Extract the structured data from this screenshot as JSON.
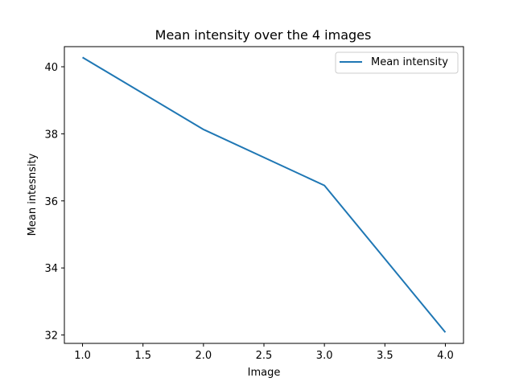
{
  "chart_data": {
    "type": "line",
    "title": "Mean intensity over the 4 images",
    "xlabel": "Image",
    "ylabel": "Mean intesnsity",
    "x": [
      1.0,
      2.0,
      3.0,
      4.0
    ],
    "series": [
      {
        "name": "Mean intensity",
        "values": [
          40.28,
          38.13,
          36.46,
          32.08
        ],
        "color": "#1f77b4"
      }
    ],
    "xlim": [
      0.85,
      4.15
    ],
    "ylim": [
      31.75,
      40.6
    ],
    "xticks": [
      1.0,
      1.5,
      2.0,
      2.5,
      3.0,
      3.5,
      4.0
    ],
    "xtick_labels": [
      "1.0",
      "1.5",
      "2.0",
      "2.5",
      "3.0",
      "3.5",
      "4.0"
    ],
    "yticks": [
      32,
      34,
      36,
      38,
      40
    ],
    "ytick_labels": [
      "32",
      "34",
      "36",
      "38",
      "40"
    ],
    "grid": false,
    "legend_position": "top-right"
  }
}
